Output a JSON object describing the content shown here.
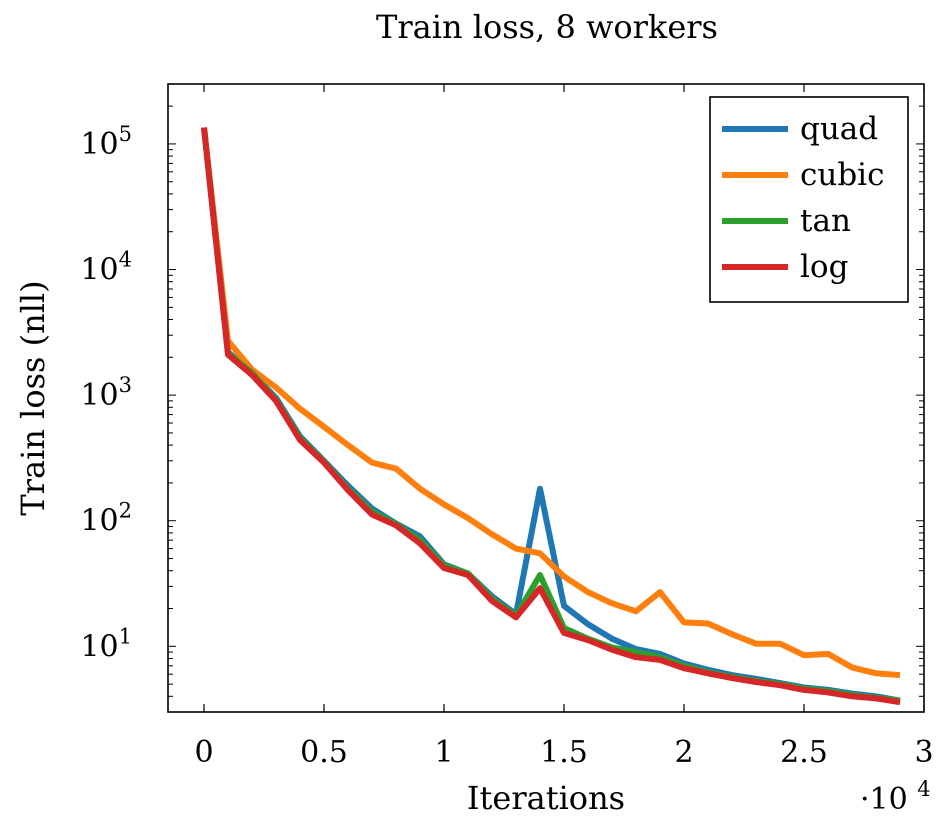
{
  "chart_data": {
    "type": "line",
    "title": "Train loss, 8 workers",
    "xlabel": "Iterations",
    "ylabel": "Train loss (nll)",
    "x_multiplier_label": "·10",
    "x_multiplier_exp": "4",
    "xscale": "linear",
    "yscale": "log",
    "xlim": [
      -0.15,
      3.0
    ],
    "ylim": [
      3.0,
      300000
    ],
    "grid": false,
    "legend_position": "top-right",
    "x_ticks": [
      {
        "value": 0,
        "label": "0"
      },
      {
        "value": 0.5,
        "label": "0.5"
      },
      {
        "value": 1,
        "label": "1"
      },
      {
        "value": 1.5,
        "label": "1.5"
      },
      {
        "value": 2,
        "label": "2"
      },
      {
        "value": 2.5,
        "label": "2.5"
      },
      {
        "value": 3,
        "label": "3"
      }
    ],
    "y_ticks": [
      {
        "value": 10,
        "base": "10",
        "exp": "1"
      },
      {
        "value": 100,
        "base": "10",
        "exp": "2"
      },
      {
        "value": 1000,
        "base": "10",
        "exp": "3"
      },
      {
        "value": 10000,
        "base": "10",
        "exp": "4"
      },
      {
        "value": 100000,
        "base": "10",
        "exp": "5"
      }
    ],
    "x": [
      0,
      0.1,
      0.2,
      0.3,
      0.4,
      0.5,
      0.6,
      0.7,
      0.8,
      0.9,
      1.0,
      1.1,
      1.2,
      1.3,
      1.4,
      1.5,
      1.6,
      1.7,
      1.8,
      1.9,
      2.0,
      2.1,
      2.2,
      2.3,
      2.4,
      2.5,
      2.6,
      2.7,
      2.8,
      2.9
    ],
    "series": [
      {
        "name": "quad",
        "color": "#1f77b4",
        "values": [
          135000,
          2200,
          1500,
          950,
          470,
          300,
          190,
          125,
          95,
          75,
          45,
          38,
          25,
          18,
          180,
          21,
          15,
          11.5,
          9.5,
          8.7,
          7.3,
          6.5,
          5.9,
          5.5,
          5.1,
          4.7,
          4.5,
          4.2,
          4.0,
          3.7
        ]
      },
      {
        "name": "cubic",
        "color": "#ff7f0e",
        "values": [
          135000,
          2700,
          1600,
          1150,
          780,
          560,
          400,
          290,
          260,
          180,
          135,
          105,
          78,
          60,
          55,
          36,
          27,
          22,
          19,
          27,
          15.5,
          15.2,
          12.5,
          10.5,
          10.5,
          8.5,
          8.7,
          6.8,
          6.1,
          5.9
        ]
      },
      {
        "name": "tan",
        "color": "#2ca02c",
        "values": [
          135000,
          2150,
          1500,
          920,
          455,
          295,
          180,
          118,
          94,
          70,
          44,
          38,
          24,
          17.5,
          37,
          14,
          11.5,
          9.8,
          9.0,
          8.2,
          7.0,
          6.2,
          5.7,
          5.3,
          5.0,
          4.6,
          4.4,
          4.1,
          3.9,
          3.7
        ]
      },
      {
        "name": "log",
        "color": "#d62728",
        "values": [
          135000,
          2100,
          1450,
          900,
          440,
          290,
          175,
          112,
          92,
          66,
          42,
          37,
          23,
          17,
          29,
          12.8,
          11.2,
          9.4,
          8.2,
          7.8,
          6.7,
          6.1,
          5.6,
          5.2,
          4.9,
          4.5,
          4.3,
          4.0,
          3.85,
          3.6
        ]
      }
    ]
  }
}
